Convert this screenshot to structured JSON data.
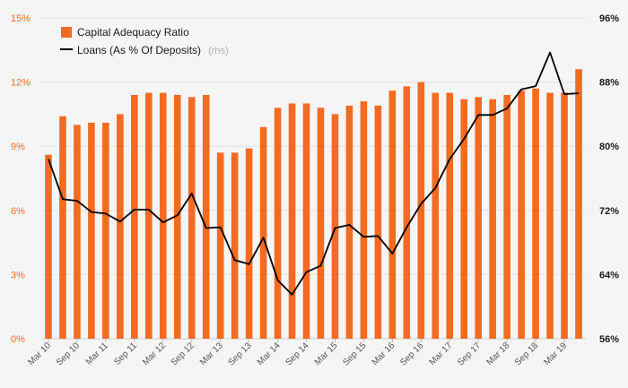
{
  "chart_data": {
    "type": "bar",
    "categories": [
      "Mar 10",
      "Jun 10",
      "Sep 10",
      "Dec 10",
      "Mar 11",
      "Jun 11",
      "Sep 11",
      "Dec 11",
      "Mar 12",
      "Jun 12",
      "Sep 12",
      "Dec 12",
      "Mar 13",
      "Jun 13",
      "Sep 13",
      "Dec 13",
      "Mar 14",
      "Jun 14",
      "Sep 14",
      "Dec 14",
      "Mar 15",
      "Jun 15",
      "Sep 15",
      "Dec 15",
      "Mar 16",
      "Jun 16",
      "Sep 16",
      "Dec 16",
      "Mar 17",
      "Jun 17",
      "Sep 17",
      "Dec 17",
      "Mar 18",
      "Jun 18",
      "Sep 18",
      "Dec 18",
      "Mar 19",
      "Jun 19"
    ],
    "x_tick_labels": [
      "Mar 10",
      "Sep 10",
      "Mar 11",
      "Sep 11",
      "Mar 12",
      "Sep 12",
      "Mar 13",
      "Sep 13",
      "Mar 14",
      "Sep 14",
      "Mar 15",
      "Sep 15",
      "Mar 16",
      "Sep 16",
      "Mar 17",
      "Sep 17",
      "Mar 18",
      "Sep 18",
      "Mar 19"
    ],
    "series": [
      {
        "name": "Capital Adequacy Ratio",
        "type": "bar",
        "axis": "left",
        "color": "#f26b21",
        "values": [
          8.6,
          10.4,
          10.0,
          10.1,
          10.1,
          10.5,
          11.4,
          11.5,
          11.5,
          11.4,
          11.3,
          11.4,
          8.7,
          8.7,
          8.9,
          9.9,
          10.8,
          11.0,
          11.0,
          10.8,
          10.5,
          10.9,
          11.1,
          10.9,
          11.6,
          11.8,
          12.0,
          11.5,
          11.5,
          11.2,
          11.3,
          11.2,
          11.4,
          11.6,
          11.7,
          11.5,
          11.5,
          12.6
        ]
      },
      {
        "name": "Loans (As % Of Deposits)",
        "legend_note": "(rhs)",
        "type": "line",
        "axis": "right",
        "color": "#000000",
        "values": [
          78.4,
          73.4,
          73.2,
          71.8,
          71.6,
          70.6,
          72.1,
          72.1,
          70.5,
          71.4,
          74.1,
          69.8,
          69.9,
          65.8,
          65.3,
          68.6,
          63.3,
          61.5,
          64.3,
          65.1,
          69.8,
          70.2,
          68.7,
          68.8,
          66.6,
          69.9,
          72.8,
          74.8,
          78.4,
          80.9,
          83.9,
          83.9,
          84.7,
          87.1,
          87.5,
          91.7,
          86.5,
          86.6
        ]
      }
    ],
    "left_axis": {
      "ylim": [
        0,
        15
      ],
      "ticks": [
        "0%",
        "3%",
        "6%",
        "9%",
        "12%",
        "15%"
      ],
      "tick_values": [
        0,
        3,
        6,
        9,
        12,
        15
      ]
    },
    "right_axis": {
      "ylim": [
        56,
        96
      ],
      "ticks": [
        "56%",
        "64%",
        "72%",
        "80%",
        "88%",
        "96%"
      ],
      "tick_values": [
        56,
        64,
        72,
        80,
        88,
        96
      ]
    },
    "grid": true,
    "legend_position": "top-left"
  }
}
